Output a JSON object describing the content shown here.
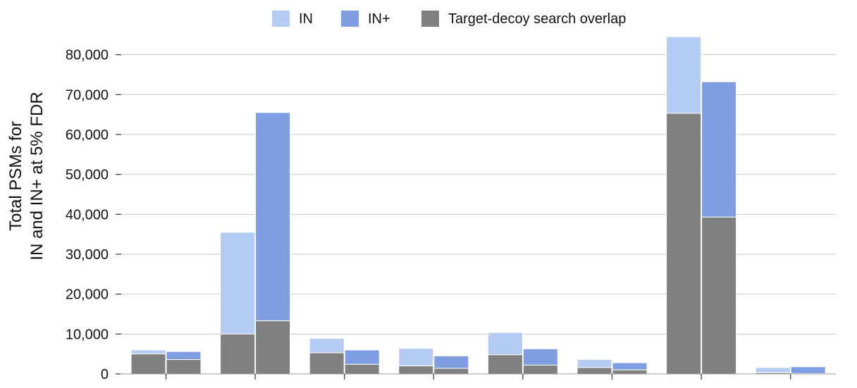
{
  "chart_data": {
    "type": "bar",
    "categories": [
      "",
      "",
      "",
      "",
      "",
      "",
      "",
      ""
    ],
    "ylabel_lines": [
      "Total PSMs for",
      "IN and IN+ at 5% FDR"
    ],
    "ylim": [
      0,
      85000
    ],
    "y_ticks": [
      0,
      10000,
      20000,
      30000,
      40000,
      50000,
      60000,
      70000,
      80000
    ],
    "y_tick_labels": [
      "0",
      "10,000",
      "20,000",
      "30,000",
      "40,000",
      "50,000",
      "60,000",
      "70,000",
      "80,000"
    ],
    "grid": true,
    "legend_position": "top-center",
    "legend": [
      {
        "label": "IN",
        "color": "#b4cbf3"
      },
      {
        "label": "IN+",
        "color": "#7f9de3"
      },
      {
        "label": "Target-decoy search overlap",
        "color": "#808080"
      }
    ],
    "series": [
      {
        "name": "IN",
        "color": "#b4cbf3",
        "overlap": [
          5000,
          10000,
          5300,
          2000,
          4800,
          1600,
          65300,
          300
        ],
        "total": [
          6000,
          35500,
          8900,
          6400,
          10400,
          3600,
          84500,
          1600
        ]
      },
      {
        "name": "IN+",
        "color": "#7f9de3",
        "overlap": [
          3600,
          13300,
          2400,
          1400,
          2200,
          1000,
          39300,
          100
        ],
        "total": [
          5600,
          65500,
          6000,
          4500,
          6300,
          2800,
          73200,
          1800
        ]
      }
    ],
    "overlap_color": "#808080"
  }
}
